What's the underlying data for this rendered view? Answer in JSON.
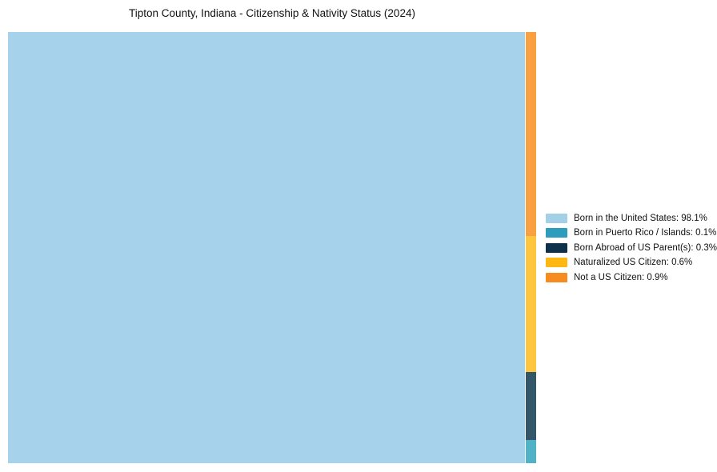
{
  "page": {
    "background": "#ffffff"
  },
  "chart_data": {
    "type": "treemap",
    "title": "Tipton County, Indiana - Citizenship & Nativity Status (2024)",
    "unit": "%",
    "layout": {
      "grid": false,
      "axes": false,
      "legend_position": "right-center",
      "arrangement": "largest category fills left tile; remaining categories stacked top-to-bottom (largest first) in a thin right column"
    },
    "items": [
      {
        "label": "Born in the United States",
        "value": 98.1,
        "legend_color": "#A3CFE7",
        "tile_color": "#A6D3EB"
      },
      {
        "label": "Born in Puerto Rico / Islands",
        "value": 0.1,
        "legend_color": "#2D9DBE",
        "tile_color": "#4FB2C7"
      },
      {
        "label": "Born Abroad of US Parent(s)",
        "value": 0.3,
        "legend_color": "#0E3149",
        "tile_color": "#345669"
      },
      {
        "label": "Naturalized US Citizen",
        "value": 0.6,
        "legend_color": "#FDB814",
        "tile_color": "#FDC63E"
      },
      {
        "label": "Not a US Citizen",
        "value": 0.9,
        "legend_color": "#F68B1F",
        "tile_color": "#F9A140"
      }
    ],
    "legend_entries": [
      "Born in the United States: 98.1%",
      "Born in Puerto Rico / Islands: 0.1%",
      "Born Abroad of US Parent(s): 0.3%",
      "Naturalized US Citizen: 0.6%",
      "Not a US Citizen: 0.9%"
    ]
  }
}
